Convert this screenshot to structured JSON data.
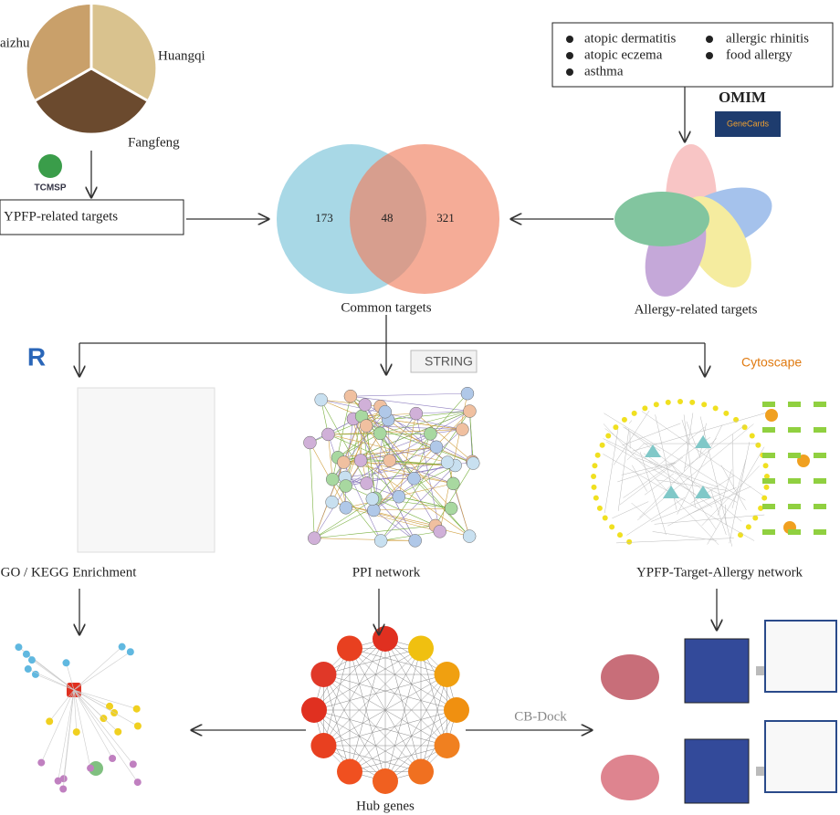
{
  "herbs": {
    "left": "aizhu",
    "top_right": "Huangqi",
    "bottom": "Fangfeng"
  },
  "logos": {
    "tcmsp": "TCMSP",
    "omim": "OMIM",
    "genecards": "GeneCards",
    "string": "STRING",
    "cytoscape": "Cytoscape",
    "r": "R"
  },
  "boxes": {
    "ypfp_targets": "YPFP-related targets"
  },
  "diseases": [
    "atopic dermatitis",
    "allergic rhinitis",
    "atopic eczema",
    "food allergy",
    "asthma"
  ],
  "venn": {
    "left": "173",
    "overlap": "48",
    "right": "321",
    "label": "Common targets"
  },
  "labels": {
    "allergy_targets": "Allergy-related targets",
    "enrichment": "GO / KEGG Enrichment",
    "ppi": "PPI network",
    "network": "YPFP-Target-Allergy network",
    "hub": "Hub genes",
    "dock": "CB-Dock"
  }
}
